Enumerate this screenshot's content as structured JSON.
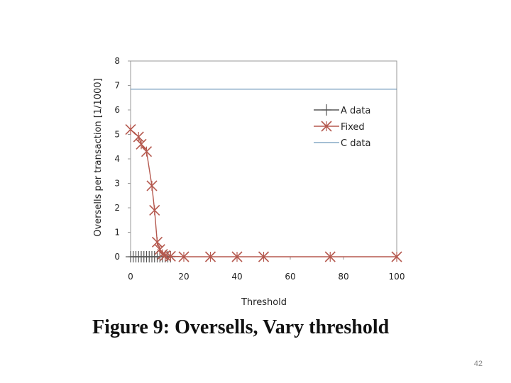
{
  "chart_data": {
    "type": "line",
    "xlabel": "Threshold",
    "ylabel": "Oversells per transaction [1/1000]",
    "xlim": [
      0,
      100
    ],
    "ylim": [
      0,
      8
    ],
    "xticks": [
      "0",
      "20",
      "40",
      "60",
      "80",
      "100"
    ],
    "yticks": [
      "0",
      "1",
      "2",
      "3",
      "4",
      "5",
      "6",
      "7",
      "8"
    ],
    "grid": false,
    "legend_position": "right",
    "series": [
      {
        "name": "A data",
        "marker": "plus",
        "color": "#555555",
        "x": [
          0,
          1,
          2,
          3,
          4,
          5,
          6,
          7,
          8,
          9,
          10,
          11,
          12,
          13,
          14,
          15
        ],
        "y": [
          0,
          0,
          0,
          0,
          0,
          0,
          0,
          0,
          0,
          0,
          0,
          0,
          0,
          0,
          0,
          0
        ]
      },
      {
        "name": "Fixed",
        "marker": "star",
        "color": "#b5594f",
        "x": [
          0,
          3,
          4,
          6,
          8,
          9,
          10,
          11,
          12,
          13,
          15,
          20,
          30,
          40,
          50,
          75,
          100
        ],
        "y": [
          5.2,
          4.9,
          4.6,
          4.3,
          2.9,
          1.9,
          0.6,
          0.3,
          0.1,
          0.05,
          0.02,
          0,
          0,
          0,
          0,
          0,
          0
        ]
      },
      {
        "name": "C data",
        "marker": "none",
        "color": "#4a7fa8",
        "x": [
          0,
          100
        ],
        "y": [
          6.85,
          6.85
        ]
      }
    ]
  },
  "caption": "Figure 9:  Oversells, Vary threshold",
  "page_number": "42"
}
